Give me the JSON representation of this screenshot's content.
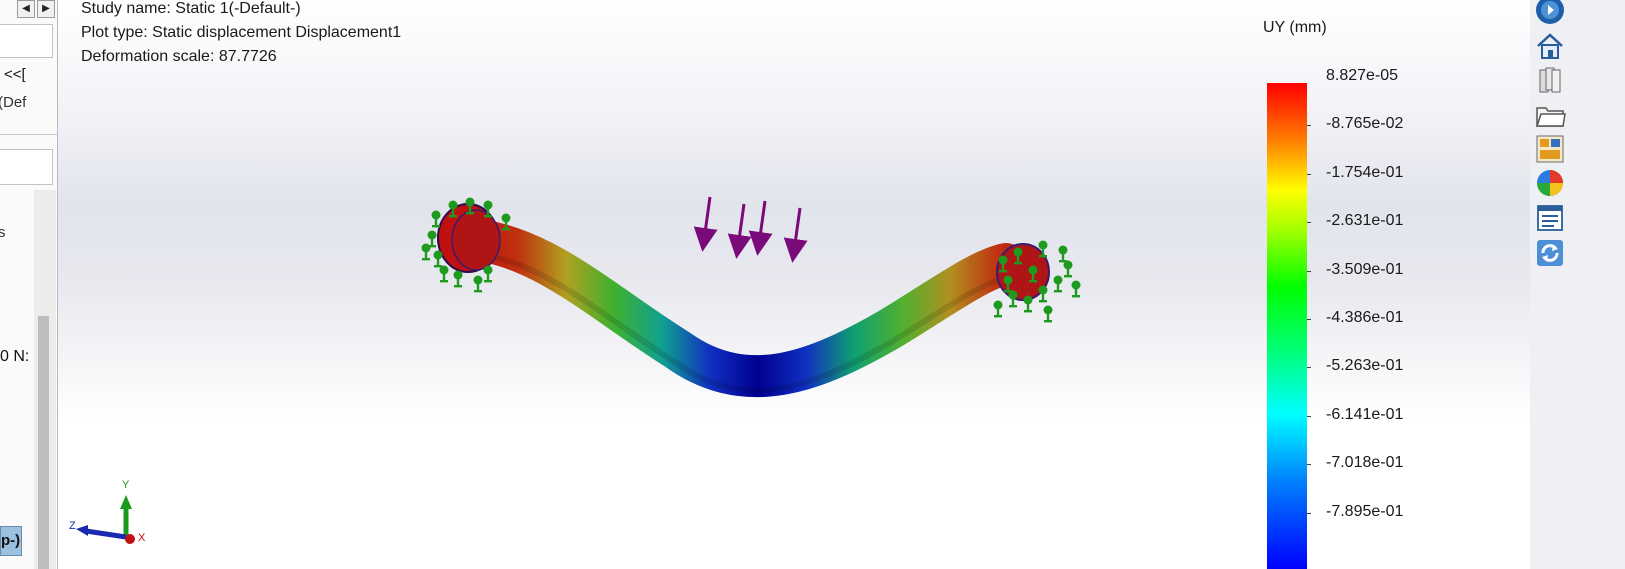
{
  "left_panel": {
    "nav_prev": "◀",
    "nav_next": "▶",
    "text1": "<<[",
    "text2": "(Def",
    "text3": "s",
    "text4": "0 N:",
    "tab_label": "p-)"
  },
  "viewport": {
    "study_name": "Study name: Static 1(-Default-)",
    "plot_type": "Plot type: Static displacement Displacement1",
    "deformation_scale": "Deformation scale: 87.7726"
  },
  "legend": {
    "title": "UY (mm)",
    "labels": [
      "8.827e-05",
      "-8.765e-02",
      "-1.754e-01",
      "-2.631e-01",
      "-3.509e-01",
      "-4.386e-01",
      "-5.263e-01",
      "-6.141e-01",
      "-7.018e-01",
      "-7.895e-01"
    ],
    "colors": {
      "max": "#ff0000",
      "mid": "#00ff00",
      "min": "#0000ff"
    }
  },
  "triad": {
    "x": "X",
    "y": "Y",
    "z": "Z"
  },
  "toolbar": {
    "icons": [
      "view-cube-icon",
      "home-icon",
      "parts-icon",
      "folder-icon",
      "view-palette-icon",
      "appearance-icon",
      "properties-icon",
      "refresh-icon"
    ]
  },
  "colors": {
    "fixture": "#1e9a1e",
    "load_arrow": "#7a0a7a",
    "accent": "#2a6cc0"
  }
}
